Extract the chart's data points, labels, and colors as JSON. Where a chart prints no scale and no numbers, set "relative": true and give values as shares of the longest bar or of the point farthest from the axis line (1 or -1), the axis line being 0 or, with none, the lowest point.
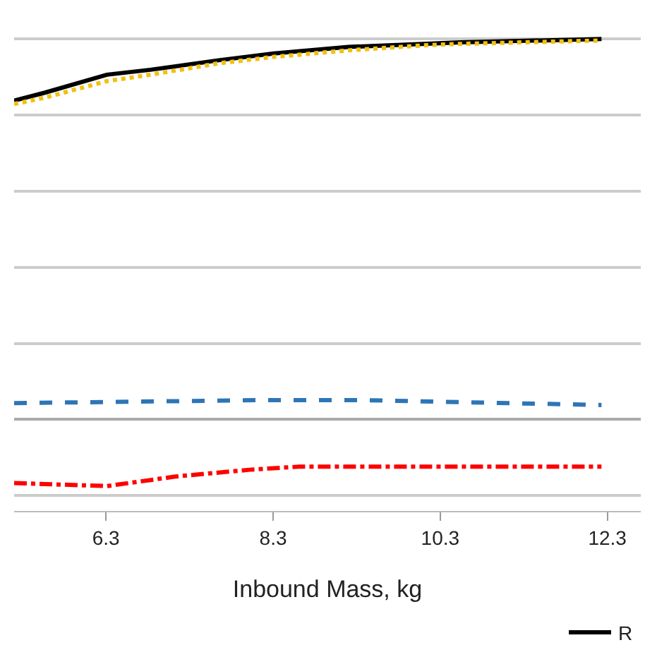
{
  "chart_data": {
    "type": "line",
    "relative": true,
    "xlabel": "Inbound Mass, kg",
    "xlim": [
      5.2,
      12.7
    ],
    "xticks": [
      6.3,
      8.3,
      10.3,
      12.3
    ],
    "grid": "y",
    "legend": "bottom right",
    "marker": "none",
    "series": [
      {
        "name": "R",
        "color": "#000000",
        "line_style": "solid",
        "x": [
          5.2,
          5.57,
          6.31,
          6.83,
          7.65,
          8.31,
          9.2,
          10.09,
          10.54,
          12.23
        ],
        "values": [
          0.838,
          0.859,
          0.906,
          0.919,
          0.944,
          0.962,
          0.979,
          0.987,
          0.991,
          1
        ]
      },
      {
        "color": "#f2c012",
        "line_style": "dotted",
        "x": [
          5.2,
          5.57,
          6.31,
          6.83,
          7.65,
          8.31,
          9.2,
          10.09,
          10.54,
          12.23
        ],
        "values": [
          0.829,
          0.846,
          0.889,
          0.906,
          0.936,
          0.953,
          0.97,
          0.983,
          0.987,
          0.996
        ]
      },
      {
        "color": "#2e75b6",
        "line_style": "dashed",
        "x": [
          5.2,
          8.17,
          9.35,
          12.23
        ],
        "values": [
          0.043,
          0.051,
          0.051,
          0.038
        ]
      },
      {
        "color": "#ff0000",
        "line_style": "dashdot",
        "x": [
          5.2,
          6.31,
          7.13,
          8.02,
          8.61,
          12.23
        ],
        "values": [
          -0.167,
          -0.175,
          -0.15,
          -0.132,
          -0.124,
          -0.124
        ]
      }
    ]
  }
}
